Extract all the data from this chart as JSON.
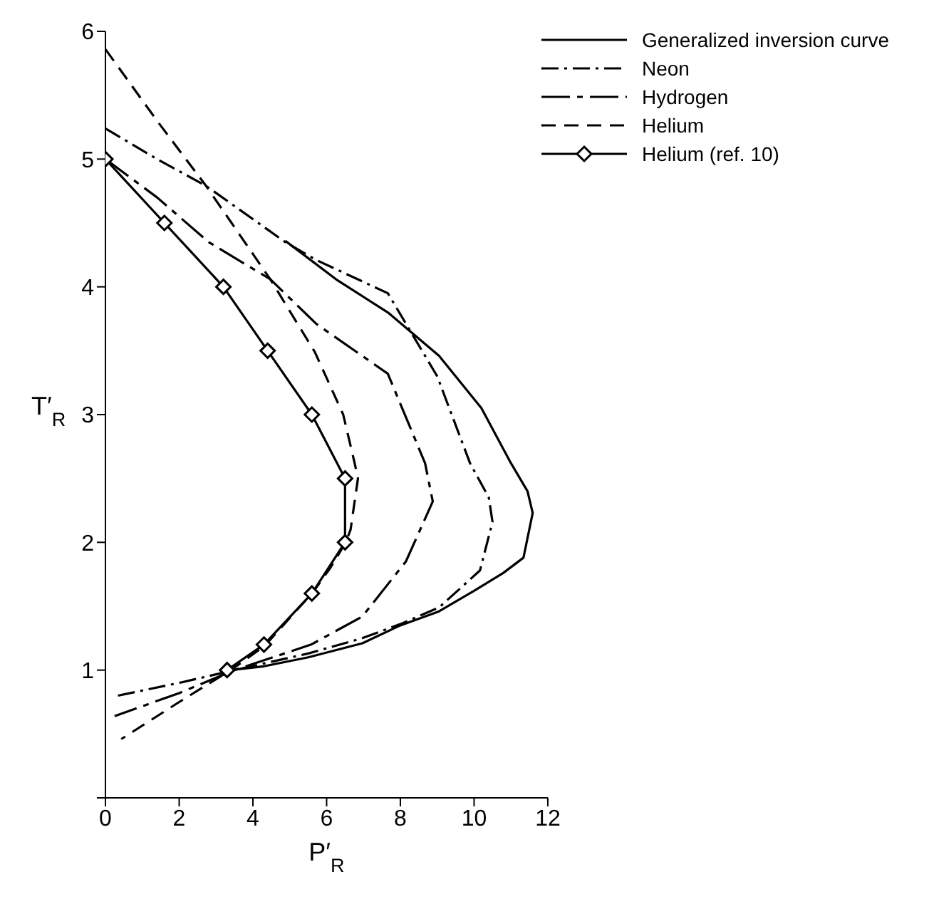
{
  "chart_data": {
    "type": "line",
    "xlabel": "P′$_{R}$",
    "ylabel": "T′$_{R}$",
    "xlim": [
      0,
      12
    ],
    "xticks": [
      0,
      2,
      4,
      6,
      8,
      10,
      12
    ],
    "ylim": [
      0,
      6
    ],
    "yticks": [
      {
        "value": 0,
        "label": null
      },
      1,
      2,
      3,
      4,
      5,
      6
    ],
    "legend": "top right",
    "marker": "none",
    "series": [
      {
        "name": "Generalized inversion curve",
        "color": "#000000",
        "line_style": "solid",
        "x": [
          4.88,
          6.3,
          7.66,
          9.05,
          10.2,
          11.0,
          11.45,
          11.59,
          11.34,
          10.79,
          10.0,
          9.05,
          8.0,
          6.97,
          5.5,
          4.3,
          3.4
        ],
        "values": [
          4.36,
          4.05,
          3.8,
          3.46,
          3.05,
          2.62,
          2.4,
          2.23,
          1.88,
          1.76,
          1.62,
          1.46,
          1.35,
          1.21,
          1.1,
          1.03,
          1.0
        ]
      },
      {
        "name": "Neon",
        "color": "#000000",
        "line_style": "dashdot",
        "x": [
          0,
          1.4,
          2.73,
          4.88,
          5.72,
          7.66,
          9.0,
          9.89,
          10.4,
          10.5,
          10.16,
          9.05,
          8.0,
          6.97,
          5.5,
          3.5,
          2.0,
          0.34
        ],
        "values": [
          5.24,
          5.0,
          4.79,
          4.35,
          4.21,
          3.95,
          3.3,
          2.62,
          2.35,
          2.16,
          1.78,
          1.49,
          1.36,
          1.25,
          1.13,
          1.0,
          0.9,
          0.8
        ]
      },
      {
        "name": "Hydrogen",
        "color": "#000000",
        "line_style": "longdashdot",
        "x": [
          0,
          1.4,
          2.8,
          4.47,
          5.72,
          7.66,
          8.67,
          8.88,
          8.15,
          6.97,
          5.58,
          3.5,
          2.0,
          0.25
        ],
        "values": [
          5.0,
          4.7,
          4.35,
          4.06,
          3.71,
          3.32,
          2.62,
          2.32,
          1.85,
          1.42,
          1.2,
          1.0,
          0.82,
          0.64
        ]
      },
      {
        "name": "Helium",
        "color": "#000000",
        "line_style": "dashed",
        "x": [
          0,
          1.4,
          2.73,
          4.47,
          5.68,
          6.45,
          6.76,
          6.85,
          6.65,
          6.52,
          6.1,
          5.63,
          4.32,
          3.4,
          2.0,
          0.43
        ],
        "values": [
          5.86,
          5.3,
          4.79,
          4.06,
          3.49,
          3.0,
          2.62,
          2.5,
          2.1,
          2.0,
          1.8,
          1.61,
          1.19,
          1.0,
          0.75,
          0.46
        ]
      },
      {
        "name": "Helium (ref. 10)",
        "color": "#000000",
        "line_style": "solid",
        "marker": "diamond",
        "x": [
          0,
          1.6,
          3.2,
          4.4,
          5.6,
          6.5,
          6.5,
          5.6,
          4.3,
          3.3
        ],
        "values": [
          5.0,
          4.5,
          4.0,
          3.5,
          3.0,
          2.5,
          2.0,
          1.6,
          1.2,
          1.0
        ]
      }
    ]
  }
}
